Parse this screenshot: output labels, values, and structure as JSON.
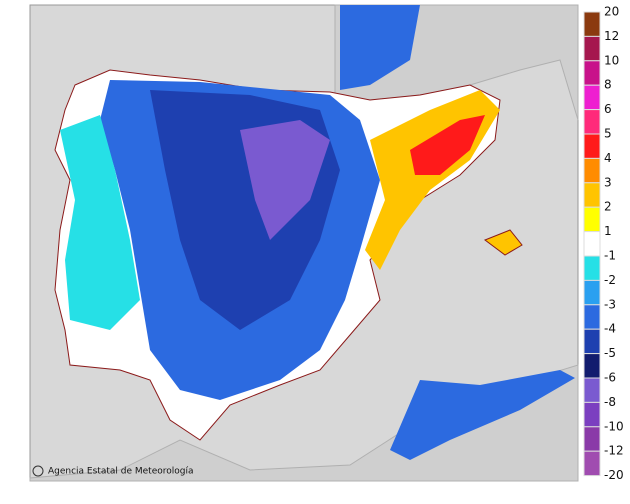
{
  "legend": {
    "labels": [
      "20",
      "12",
      "10",
      "8",
      "6",
      "5",
      "4",
      "3",
      "2",
      "1",
      "-1",
      "-2",
      "-3",
      "-4",
      "-5",
      "-6",
      "-8",
      "-10",
      "-12",
      "-20"
    ],
    "colors": [
      "#8b3a0f",
      "#a5174e",
      "#c8128a",
      "#ee1fd0",
      "#ff2a7a",
      "#ff1a1a",
      "#ff8c00",
      "#ffc400",
      "#ffff00",
      "#ffffff",
      "#26e0e6",
      "#2aa0f0",
      "#2c6ae0",
      "#1e40b0",
      "#121c6e",
      "#7a5ad0",
      "#7b3fc0",
      "#8a3aa8",
      "#a04cb0"
    ]
  },
  "credit": "Agencia Estatal de Meteorología"
}
